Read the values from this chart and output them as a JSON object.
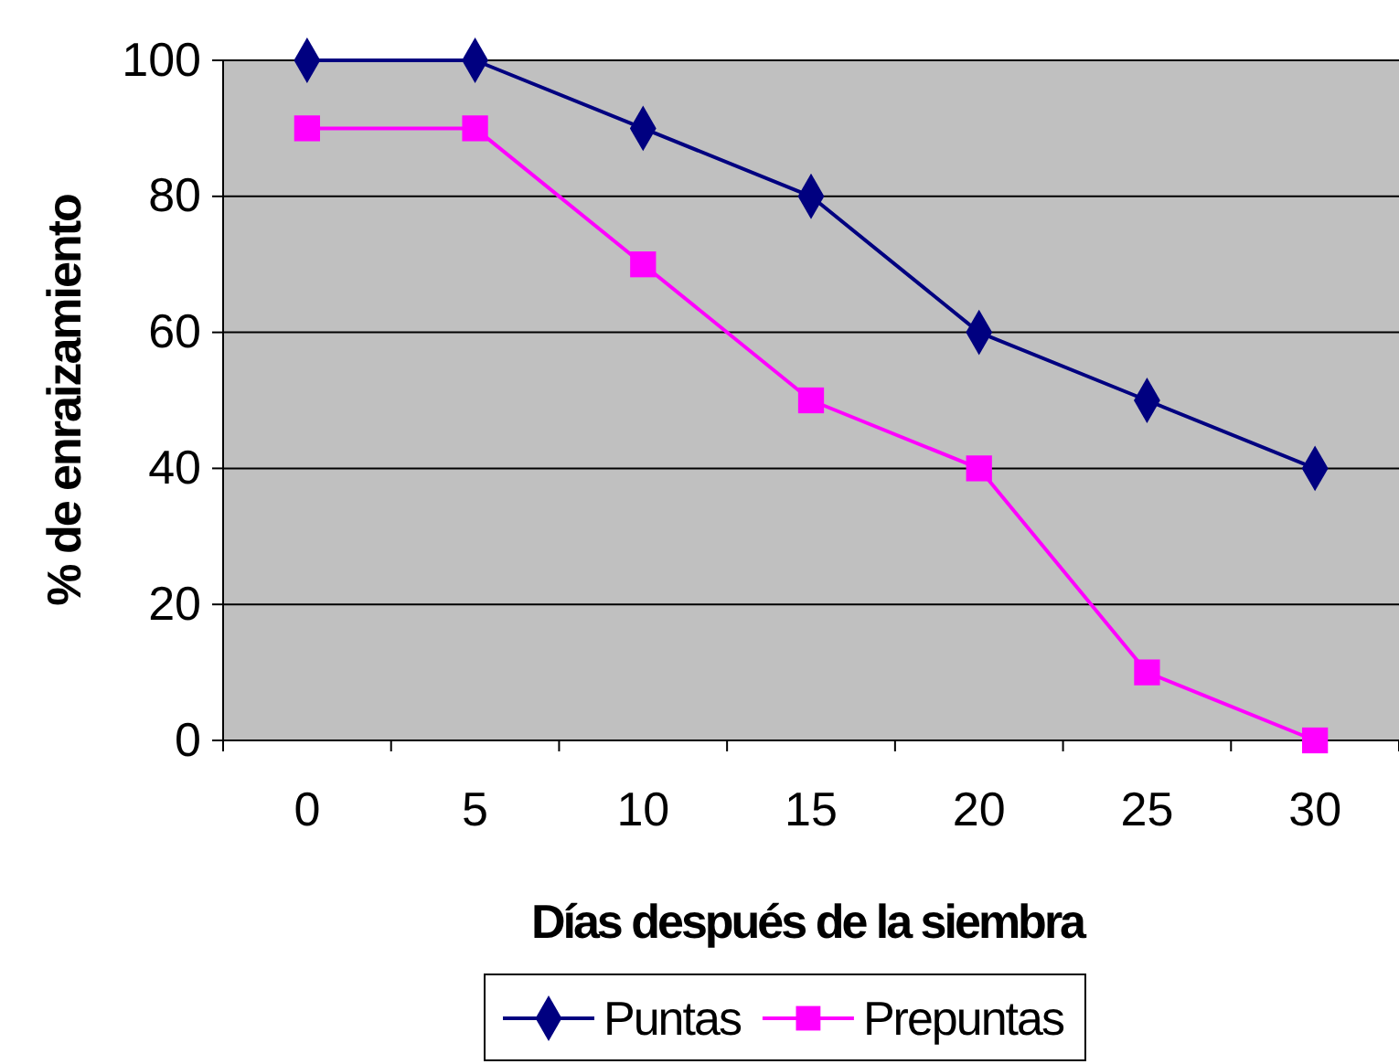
{
  "chart_data": {
    "type": "line",
    "xlabel": "Días después de la siembra",
    "ylabel": "% de enraizamiento",
    "categories": [
      "0",
      "5",
      "10",
      "15",
      "20",
      "25",
      "30"
    ],
    "series": [
      {
        "name": "Puntas",
        "color": "#000080",
        "marker": "diamond",
        "values": [
          100,
          100,
          90,
          80,
          60,
          50,
          40
        ]
      },
      {
        "name": "Prepuntas",
        "color": "#ff00ff",
        "marker": "square",
        "values": [
          90,
          90,
          70,
          50,
          40,
          10,
          0
        ]
      }
    ],
    "ylim": [
      0,
      100
    ],
    "yticks": [
      0,
      20,
      40,
      60,
      80,
      100
    ],
    "grid": "y",
    "legend": "bottom",
    "line_style": "solid"
  }
}
